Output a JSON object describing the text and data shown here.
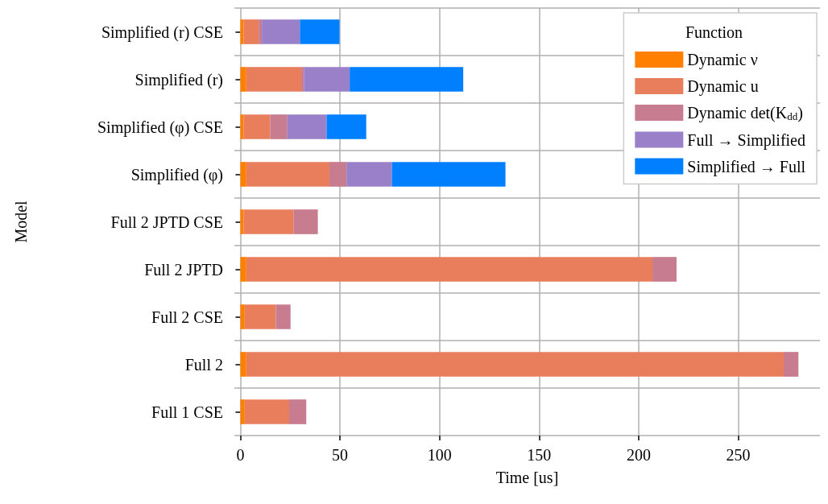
{
  "chart_data": {
    "type": "bar",
    "orientation": "horizontal",
    "stacked": true,
    "xlabel": "Time [us]",
    "ylabel": "Model",
    "legend_title": "Function",
    "legend": "top right",
    "grid": true,
    "categories": [
      "Simplified (r) CSE",
      "Simplified (r)",
      "Simplified (φ) CSE",
      "Simplified (φ)",
      "Full 2 JPTD CSE",
      "Full 2 JPTD",
      "Full 2 CSE",
      "Full 2",
      "Full 1 CSE"
    ],
    "xlim": [
      -3,
      291
    ],
    "xticks": [
      0,
      50,
      100,
      150,
      200,
      250
    ],
    "series": [
      {
        "name": "Dynamic ν",
        "color": "#ff8000",
        "values": [
          1.7,
          3.0,
          1.7,
          3.0,
          1.7,
          3.0,
          2.2,
          3.0,
          2.2
        ]
      },
      {
        "name": "Dynamic u",
        "color": "#e87e5c",
        "values": [
          7.5,
          27.6,
          13.3,
          41.7,
          25.1,
          203.9,
          15.6,
          269.8,
          22.3
        ]
      },
      {
        "name": "Dynamic det(K$_{dd}$)",
        "color": "#c77c8f",
        "values": [
          1.6,
          1.3,
          8.6,
          8.6,
          12.1,
          12.1,
          7.4,
          7.4,
          8.6
        ]
      },
      {
        "name": "Full → Simplified",
        "color": "#9980c8",
        "values": [
          19.1,
          23,
          19.7,
          22.8,
          0,
          0,
          0,
          0,
          0
        ]
      },
      {
        "name": "Simplified → Full",
        "color": "#0080ff",
        "values": [
          19.9,
          57,
          19.9,
          57,
          0,
          0,
          0,
          0,
          0
        ]
      }
    ]
  }
}
